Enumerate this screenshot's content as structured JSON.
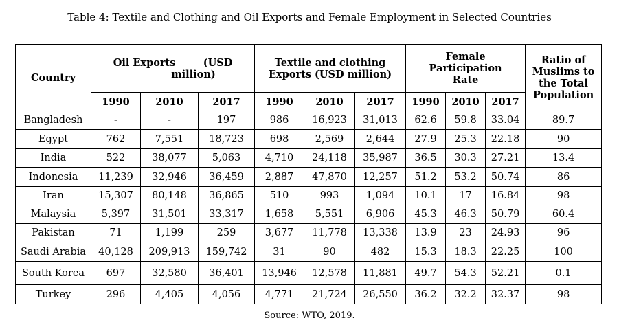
{
  "caption": "Table 4: Textile and Clothing and Oil Exports and Female Employment in Selected Countries",
  "headers": {
    "country": "Country",
    "oil_line1": "Oil Exports        (USD",
    "oil_line2": "million)",
    "textile": "Textile and clothing Exports (USD million)",
    "female": "Female Participation Rate",
    "ratio": "Ratio of Muslims to the Total Population",
    "years": [
      "1990",
      "2010",
      "2017",
      "1990",
      "2010",
      "2017",
      "1990",
      "2010",
      "2017"
    ]
  },
  "rows": [
    {
      "country": "Bangladesh",
      "oil": [
        "-",
        "-",
        "197"
      ],
      "textile": [
        "986",
        "16,923",
        "31,013"
      ],
      "female": [
        "62.6",
        "59.8",
        "33.04"
      ],
      "ratio": "89.7"
    },
    {
      "country": "Egypt",
      "oil": [
        "762",
        "7,551",
        "18,723"
      ],
      "textile": [
        "698",
        "2,569",
        "2,644"
      ],
      "female": [
        "27.9",
        "25.3",
        "22.18"
      ],
      "ratio": "90"
    },
    {
      "country": "India",
      "oil": [
        "522",
        "38,077",
        "5,063"
      ],
      "textile": [
        "4,710",
        "24,118",
        "35,987"
      ],
      "female": [
        "36.5",
        "30.3",
        "27.21"
      ],
      "ratio": "13.4"
    },
    {
      "country": "Indonesia",
      "oil": [
        "11,239",
        "32,946",
        "36,459"
      ],
      "textile": [
        "2,887",
        "47,870",
        "12,257"
      ],
      "female": [
        "51.2",
        "53.2",
        "50.74"
      ],
      "ratio": "86"
    },
    {
      "country": "Iran",
      "oil": [
        "15,307",
        "80,148",
        "36,865"
      ],
      "textile": [
        "510",
        "993",
        "1,094"
      ],
      "female": [
        "10.1",
        "17",
        "16.84"
      ],
      "ratio": "98"
    },
    {
      "country": "Malaysia",
      "oil": [
        "5,397",
        "31,501",
        "33,317"
      ],
      "textile": [
        "1,658",
        "5,551",
        "6,906"
      ],
      "female": [
        "45.3",
        "46.3",
        "50.79"
      ],
      "ratio": "60.4"
    },
    {
      "country": "Pakistan",
      "oil": [
        "71",
        "1,199",
        "259"
      ],
      "textile": [
        "3,677",
        "11,778",
        "13,338"
      ],
      "female": [
        "13.9",
        "23",
        "24.93"
      ],
      "ratio": "96"
    },
    {
      "country": "Saudi Arabia",
      "oil": [
        "40,128",
        "209,913",
        "159,742"
      ],
      "textile": [
        "31",
        "90",
        "482"
      ],
      "female": [
        "15.3",
        "18.3",
        "22.25"
      ],
      "ratio": "100"
    },
    {
      "country": "South Korea",
      "oil": [
        "697",
        "32,580",
        "36,401"
      ],
      "textile": [
        "13,946",
        "12,578",
        "11,881"
      ],
      "female": [
        "49.7",
        "54.3",
        "52.21"
      ],
      "ratio": "0.1"
    },
    {
      "country": "Turkey",
      "oil": [
        "296",
        "4,405",
        "4,056"
      ],
      "textile": [
        "4,771",
        "21,724",
        "26,550"
      ],
      "female": [
        "36.2",
        "32.2",
        "32.37"
      ],
      "ratio": "98"
    }
  ],
  "source": "Source: WTO, 2019."
}
